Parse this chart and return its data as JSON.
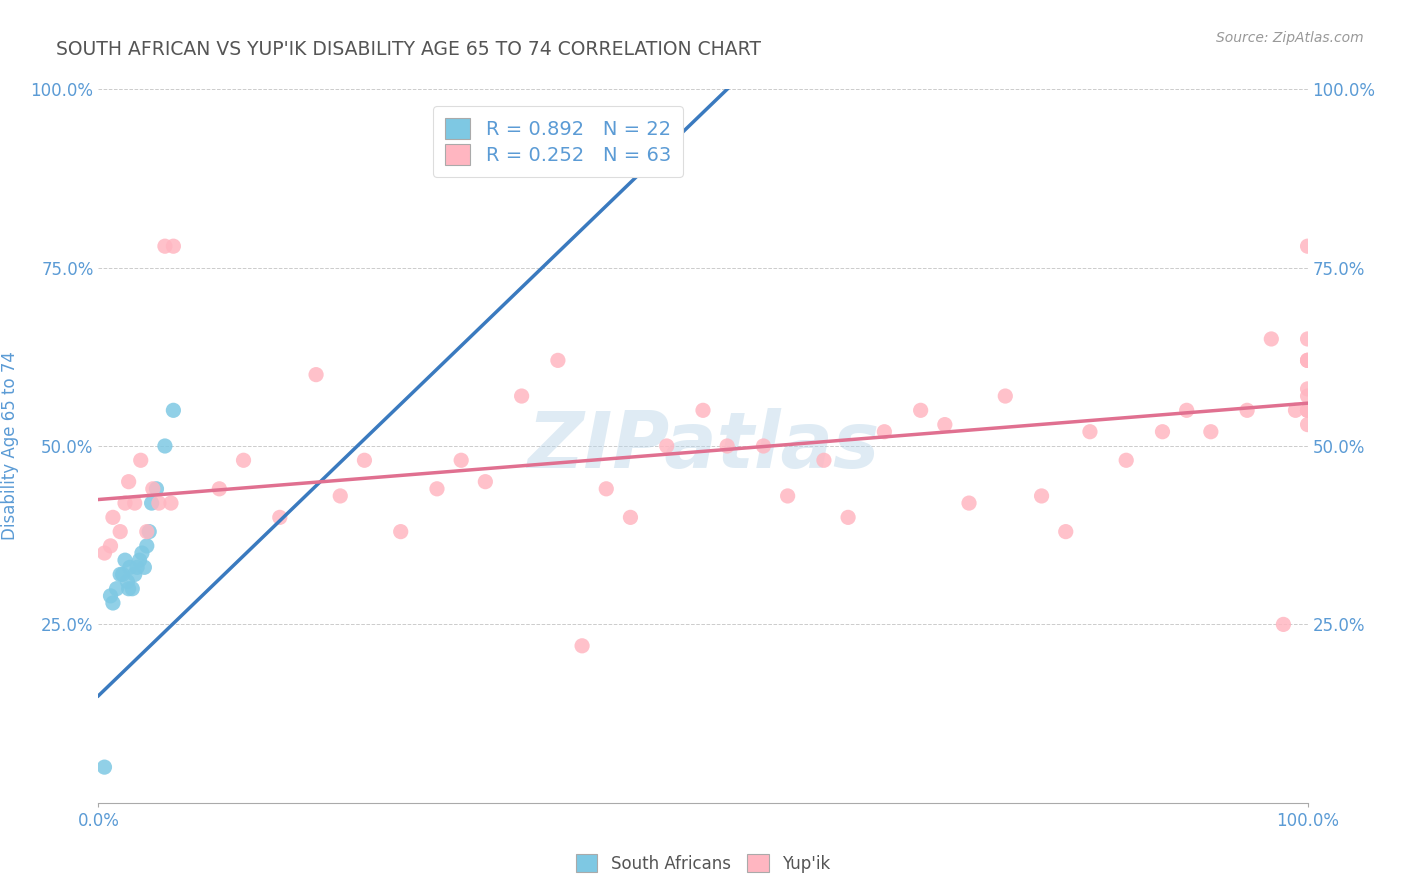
{
  "title": "SOUTH AFRICAN VS YUP'IK DISABILITY AGE 65 TO 74 CORRELATION CHART",
  "source": "Source: ZipAtlas.com",
  "ylabel": "Disability Age 65 to 74",
  "xlabel": "",
  "xlim": [
    0.0,
    1.0
  ],
  "ylim": [
    0.0,
    1.0
  ],
  "xticks": [
    0.0,
    1.0
  ],
  "xticklabels": [
    "0.0%",
    "100.0%"
  ],
  "yticks_left": [
    0.0,
    0.25,
    0.5,
    0.75,
    1.0
  ],
  "yticks_right": [
    0.0,
    0.25,
    0.5,
    0.75,
    1.0
  ],
  "yticklabels": [
    "",
    "25.0%",
    "50.0%",
    "75.0%",
    "100.0%"
  ],
  "yticklabels_right": [
    "",
    "25.0%",
    "50.0%",
    "75.0%",
    "100.0%"
  ],
  "blue_color": "#7ec8e3",
  "pink_color": "#ffb6c1",
  "line_blue": "#3a7abf",
  "line_pink": "#e07090",
  "legend_R_blue": "0.892",
  "legend_N_blue": "22",
  "legend_R_pink": "0.252",
  "legend_N_pink": "63",
  "legend_label_blue": "South Africans",
  "legend_label_pink": "Yup'ik",
  "watermark": "ZIPatlas",
  "title_color": "#555555",
  "axis_label_color": "#5b9bd5",
  "tick_color": "#5b9bd5",
  "blue_scatter_x": [
    0.005,
    0.01,
    0.012,
    0.015,
    0.018,
    0.02,
    0.022,
    0.024,
    0.025,
    0.026,
    0.028,
    0.03,
    0.032,
    0.034,
    0.036,
    0.038,
    0.04,
    0.042,
    0.044,
    0.048,
    0.055,
    0.062
  ],
  "blue_scatter_y": [
    0.05,
    0.29,
    0.28,
    0.3,
    0.32,
    0.32,
    0.34,
    0.31,
    0.3,
    0.33,
    0.3,
    0.32,
    0.33,
    0.34,
    0.35,
    0.33,
    0.36,
    0.38,
    0.42,
    0.44,
    0.5,
    0.55
  ],
  "pink_scatter_x": [
    0.005,
    0.01,
    0.012,
    0.018,
    0.022,
    0.025,
    0.03,
    0.035,
    0.04,
    0.045,
    0.05,
    0.055,
    0.06,
    0.062,
    0.1,
    0.12,
    0.15,
    0.18,
    0.2,
    0.22,
    0.25,
    0.28,
    0.3,
    0.32,
    0.35,
    0.38,
    0.4,
    0.42,
    0.44,
    0.47,
    0.5,
    0.52,
    0.55,
    0.57,
    0.6,
    0.62,
    0.65,
    0.68,
    0.7,
    0.72,
    0.75,
    0.78,
    0.8,
    0.82,
    0.85,
    0.88,
    0.9,
    0.92,
    0.95,
    0.97,
    0.98,
    0.99,
    1.0,
    1.0,
    1.0,
    1.0,
    1.0,
    1.0,
    1.0,
    1.0,
    1.0,
    1.0,
    1.0
  ],
  "pink_scatter_y": [
    0.35,
    0.36,
    0.4,
    0.38,
    0.42,
    0.45,
    0.42,
    0.48,
    0.38,
    0.44,
    0.42,
    0.78,
    0.42,
    0.78,
    0.44,
    0.48,
    0.4,
    0.6,
    0.43,
    0.48,
    0.38,
    0.44,
    0.48,
    0.45,
    0.57,
    0.62,
    0.22,
    0.44,
    0.4,
    0.5,
    0.55,
    0.5,
    0.5,
    0.43,
    0.48,
    0.4,
    0.52,
    0.55,
    0.53,
    0.42,
    0.57,
    0.43,
    0.38,
    0.52,
    0.48,
    0.52,
    0.55,
    0.52,
    0.55,
    0.65,
    0.25,
    0.55,
    0.58,
    0.53,
    0.62,
    0.57,
    0.62,
    0.78,
    0.55,
    0.62,
    0.55,
    0.65,
    0.55
  ],
  "blue_line_x0": 0.0,
  "blue_line_y0": 0.15,
  "blue_line_x1": 0.52,
  "blue_line_y1": 1.0,
  "pink_line_x0": 0.0,
  "pink_line_y0": 0.425,
  "pink_line_x1": 1.0,
  "pink_line_y1": 0.56
}
